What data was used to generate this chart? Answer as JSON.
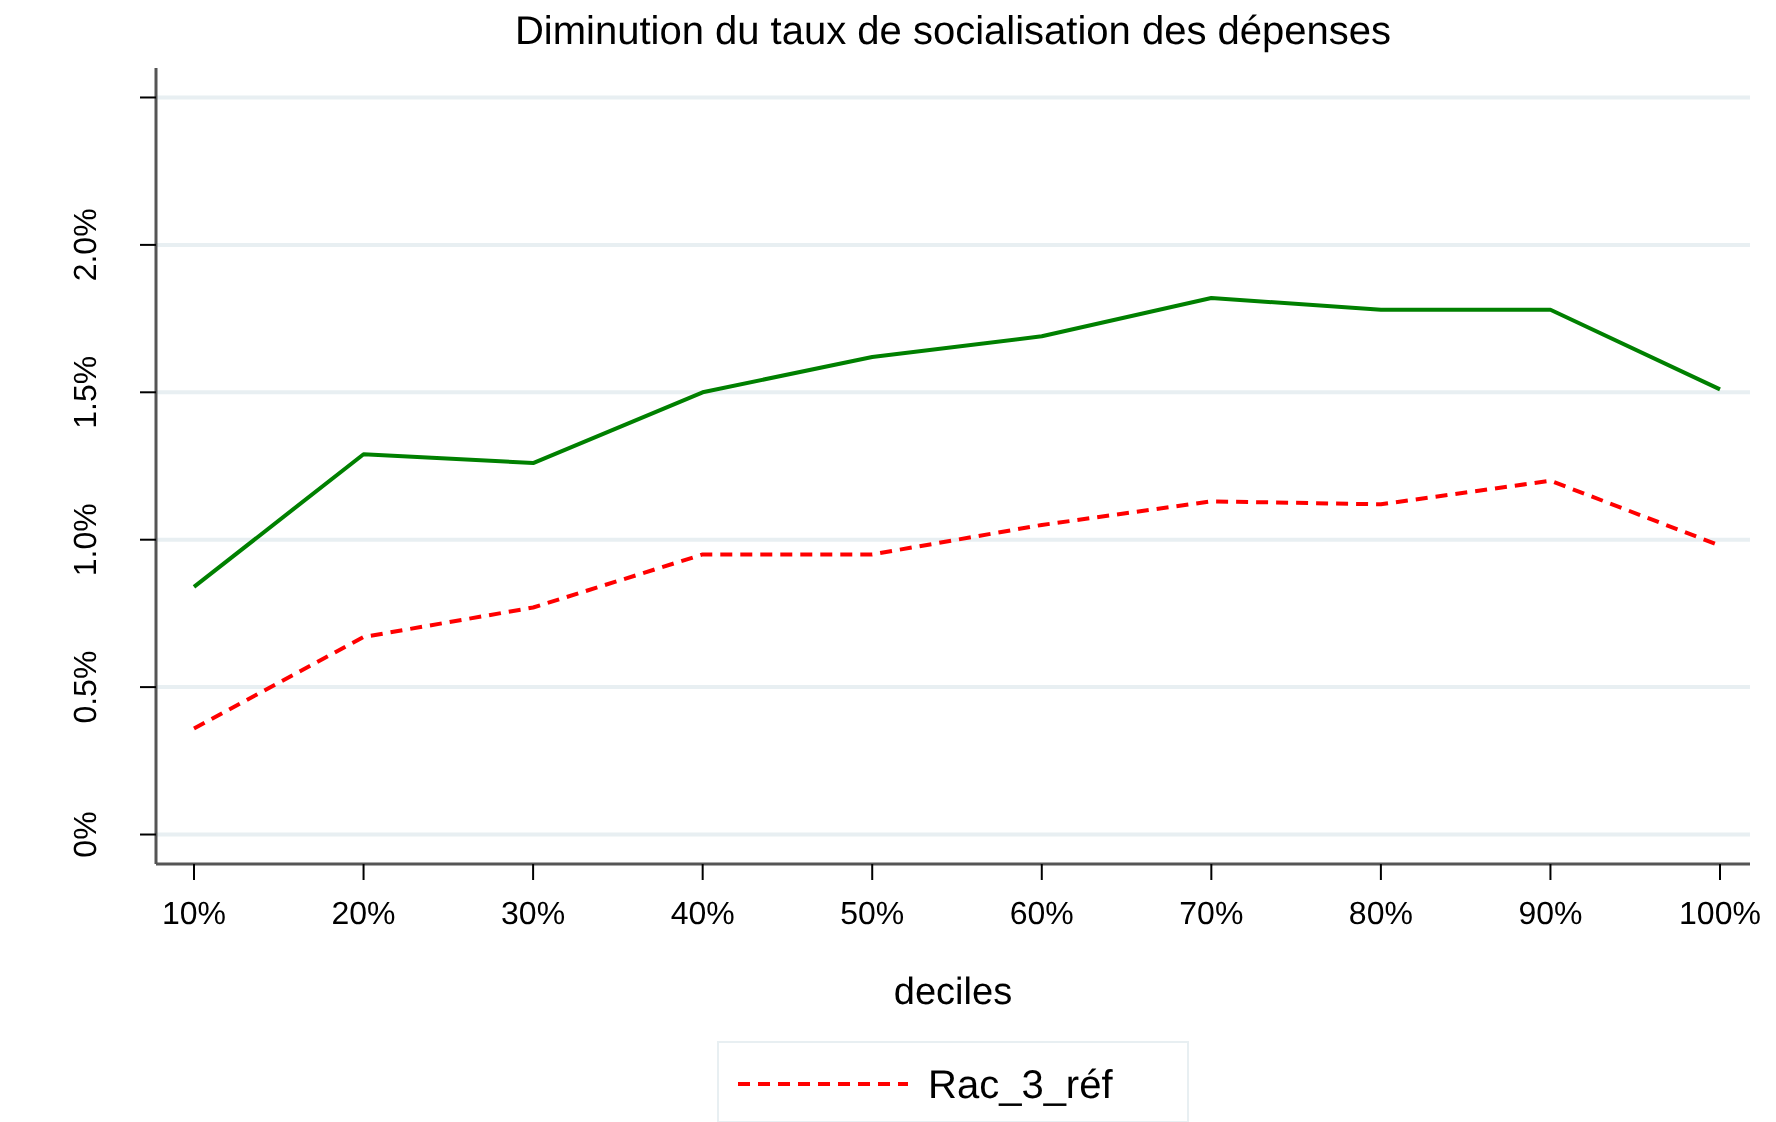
{
  "chart_data": {
    "type": "line",
    "title": "Diminution du taux de socialisation des dépenses",
    "xlabel": "deciles",
    "categories": [
      "10%",
      "20%",
      "30%",
      "40%",
      "50%",
      "60%",
      "70%",
      "80%",
      "90%",
      "100%"
    ],
    "series": [
      {
        "color": "#008000",
        "line_style": "solid",
        "values": [
          0.84,
          1.29,
          1.26,
          1.5,
          1.62,
          1.69,
          1.82,
          1.78,
          1.78,
          1.51
        ]
      },
      {
        "name": "Rac_3_réf",
        "color": "#ff0000",
        "line_style": "dashed",
        "values": [
          0.36,
          0.67,
          0.77,
          0.95,
          0.95,
          1.05,
          1.13,
          1.12,
          1.2,
          0.98
        ]
      }
    ],
    "ylim": [
      -0.1,
      2.6
    ],
    "yticks": [
      {
        "value": 0,
        "label": "0%"
      },
      {
        "value": 0.5,
        "label": "0.5%"
      },
      {
        "value": 1,
        "label": "1.0%"
      },
      {
        "value": 1.5,
        "label": "1.5%"
      },
      {
        "value": 2,
        "label": "2.0%"
      },
      {
        "value": 2.5,
        "label": null
      }
    ],
    "grid": "y",
    "legend": "bottom",
    "marker": "none"
  }
}
